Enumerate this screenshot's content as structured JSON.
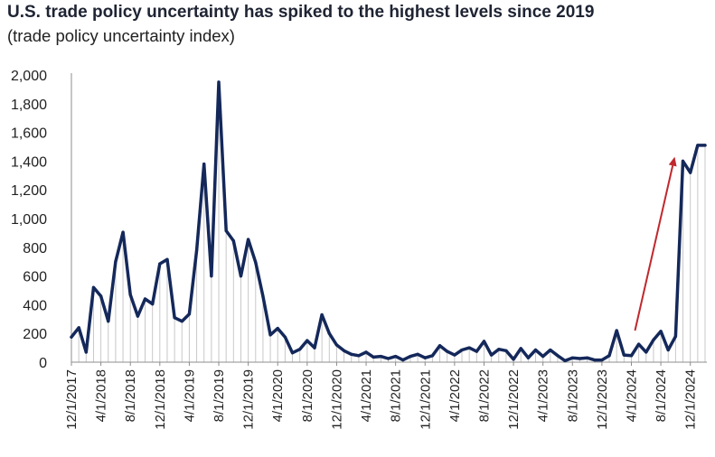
{
  "title": "U.S. trade policy uncertainty has spiked to the highest levels since 2019",
  "subtitle": "(trade policy uncertainty index)",
  "colors": {
    "line": "#14285a",
    "drop_lines": "#c8c8c8",
    "arrow": "#c0282d",
    "axis": "#8c8c8c"
  },
  "chart_data": {
    "type": "line",
    "title": "U.S. trade policy uncertainty has spiked to the highest levels since 2019",
    "subtitle": "(trade policy uncertainty index)",
    "xlabel": "",
    "ylabel": "",
    "ylim": [
      0,
      2000
    ],
    "yticks": [
      0,
      200,
      400,
      600,
      800,
      1000,
      1200,
      1400,
      1600,
      1800,
      2000
    ],
    "ytick_labels": [
      "0",
      "200",
      "400",
      "600",
      "800",
      "1,000",
      "1,200",
      "1,400",
      "1,600",
      "1,800",
      "2,000"
    ],
    "xtick_labels": [
      "12/1/2017",
      "4/1/2018",
      "8/1/2018",
      "12/1/2018",
      "4/1/2019",
      "8/1/2019",
      "12/1/2019",
      "4/1/2020",
      "8/1/2020",
      "12/1/2020",
      "4/1/2021",
      "8/1/2021",
      "12/1/2021",
      "4/1/2022",
      "8/1/2022",
      "12/1/2022",
      "4/1/2023",
      "8/1/2023",
      "12/1/2023",
      "4/1/2024",
      "8/1/2024",
      "12/1/2024"
    ],
    "grid": false,
    "annotation": "red upward arrow pointing to the late-2024 spike",
    "series": [
      {
        "x": [
          "12/1/2017",
          "1/1/2018",
          "2/1/2018",
          "3/1/2018",
          "4/1/2018",
          "5/1/2018",
          "6/1/2018",
          "7/1/2018",
          "8/1/2018",
          "9/1/2018",
          "10/1/2018",
          "11/1/2018",
          "12/1/2018",
          "1/1/2019",
          "2/1/2019",
          "3/1/2019",
          "4/1/2019",
          "5/1/2019",
          "6/1/2019",
          "7/1/2019",
          "8/1/2019",
          "9/1/2019",
          "10/1/2019",
          "11/1/2019",
          "12/1/2019",
          "1/1/2020",
          "2/1/2020",
          "3/1/2020",
          "4/1/2020",
          "5/1/2020",
          "6/1/2020",
          "7/1/2020",
          "8/1/2020",
          "9/1/2020",
          "10/1/2020",
          "11/1/2020",
          "12/1/2020",
          "1/1/2021",
          "2/1/2021",
          "3/1/2021",
          "4/1/2021",
          "5/1/2021",
          "6/1/2021",
          "7/1/2021",
          "8/1/2021",
          "9/1/2021",
          "10/1/2021",
          "11/1/2021",
          "12/1/2021",
          "1/1/2022",
          "2/1/2022",
          "3/1/2022",
          "4/1/2022",
          "5/1/2022",
          "6/1/2022",
          "7/1/2022",
          "8/1/2022",
          "9/1/2022",
          "10/1/2022",
          "11/1/2022",
          "12/1/2022",
          "1/1/2023",
          "2/1/2023",
          "3/1/2023",
          "4/1/2023",
          "5/1/2023",
          "6/1/2023",
          "7/1/2023",
          "8/1/2023",
          "9/1/2023",
          "10/1/2023",
          "11/1/2023",
          "12/1/2023",
          "1/1/2024",
          "2/1/2024",
          "3/1/2024",
          "4/1/2024",
          "5/1/2024",
          "6/1/2024",
          "7/1/2024",
          "8/1/2024",
          "9/1/2024",
          "10/1/2024",
          "11/1/2024",
          "12/1/2024",
          "1/1/2025",
          "2/1/2025"
        ],
        "values": [
          175,
          240,
          70,
          520,
          460,
          285,
          700,
          905,
          470,
          320,
          440,
          405,
          685,
          715,
          310,
          285,
          335,
          780,
          1380,
          600,
          1950,
          915,
          845,
          600,
          855,
          695,
          460,
          190,
          235,
          175,
          65,
          90,
          150,
          100,
          330,
          200,
          120,
          80,
          55,
          45,
          70,
          35,
          40,
          25,
          40,
          15,
          40,
          55,
          30,
          45,
          115,
          75,
          50,
          85,
          100,
          75,
          145,
          50,
          90,
          80,
          20,
          95,
          30,
          85,
          40,
          85,
          45,
          10,
          30,
          25,
          30,
          15,
          15,
          45,
          220,
          50,
          45,
          125,
          70,
          155,
          215,
          85,
          180,
          1400,
          1320,
          1510,
          1510
        ]
      }
    ]
  }
}
